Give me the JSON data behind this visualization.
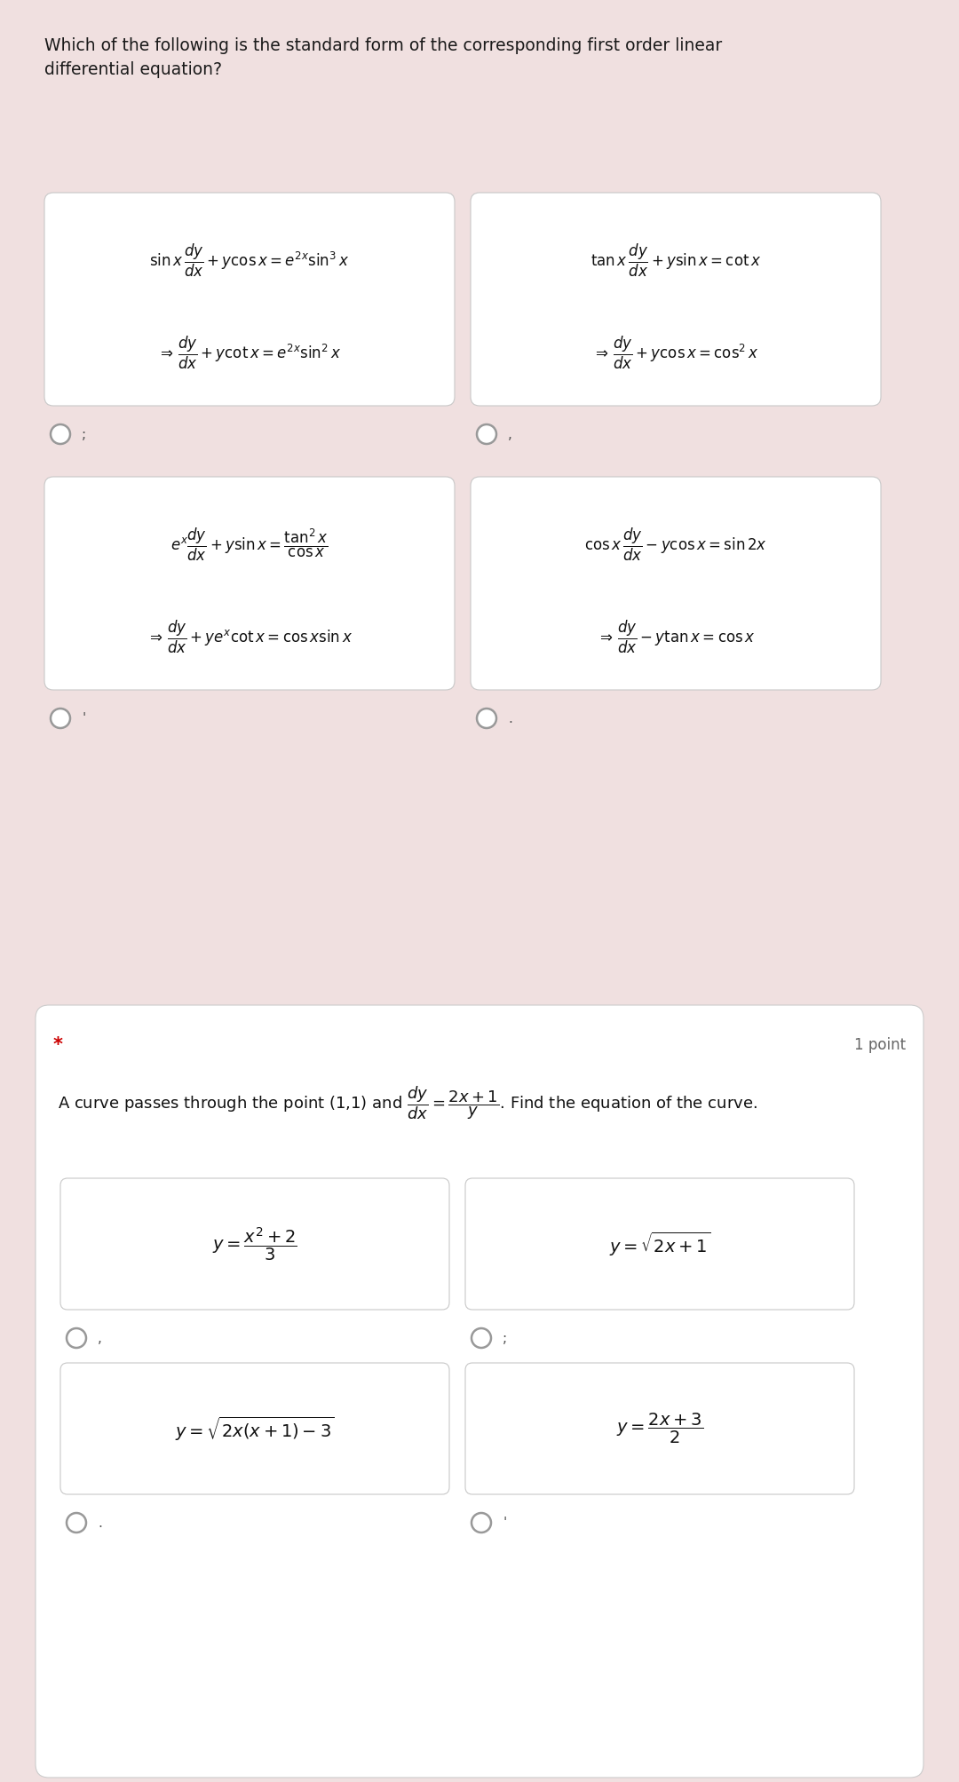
{
  "background_color": "#f0e0e0",
  "card_color": "#ffffff",
  "q1_title": "Which of the following is the standard form of the corresponding first order linear\ndifferential equation?",
  "q1_cards": [
    {
      "line1": "$\\sin x\\,\\dfrac{dy}{dx} + y\\cos x = e^{2x}\\sin^3 x$",
      "line2": "$\\Rightarrow\\,\\dfrac{dy}{dx} + y\\cot x = e^{2x}\\sin^2 x$",
      "label": ";"
    },
    {
      "line1": "$\\tan x\\,\\dfrac{dy}{dx} + y\\sin x = \\cot x$",
      "line2": "$\\Rightarrow\\,\\dfrac{dy}{dx} + y\\cos x = \\cos^2 x$",
      "label": ","
    },
    {
      "line1": "$e^x\\dfrac{dy}{dx} + y\\sin x = \\dfrac{\\tan^2 x}{\\cos x}$",
      "line2": "$\\Rightarrow\\,\\dfrac{dy}{dx} + ye^x\\cot x = \\cos x\\sin x$",
      "label": "'"
    },
    {
      "line1": "$\\cos x\\,\\dfrac{dy}{dx} - y\\cos x = \\sin 2x$",
      "line2": "$\\Rightarrow\\,\\dfrac{dy}{dx} - y\\tan x = \\cos x$",
      "label": "."
    }
  ],
  "star_color": "#cc0000",
  "point_text": "1 point",
  "q2_question": "A curve passes through the point (1,1) and $\\dfrac{dy}{dx} = \\dfrac{2x+1}{y}$. Find the equation of the curve.",
  "q2_cards": [
    {
      "text": "$y = \\dfrac{x^2+2}{3}$",
      "label": ","
    },
    {
      "text": "$y = \\sqrt{2x+1}$",
      "label": ";"
    },
    {
      "text": "$y = \\sqrt{2x(x+1)-3}$",
      "label": "."
    },
    {
      "text": "$y = \\dfrac{2x+3}{2}$",
      "label": "'"
    }
  ],
  "title_fontsize": 13.5,
  "card_text_fontsize": 12,
  "radio_label_fontsize": 11,
  "q2_text_fontsize": 13,
  "q2_card_fontsize": 14
}
